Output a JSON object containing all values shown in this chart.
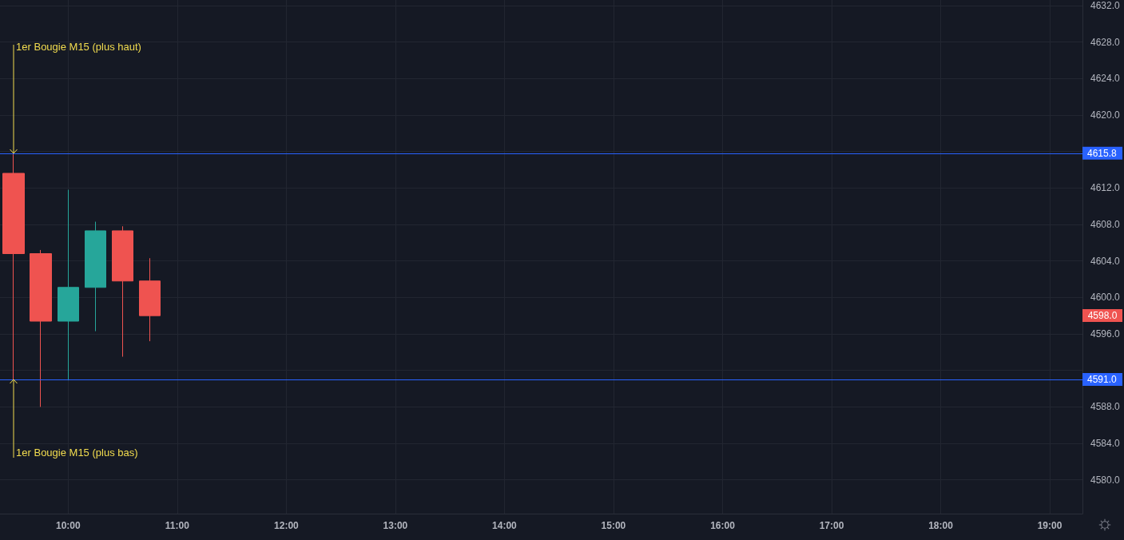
{
  "chart_data": {
    "type": "candlestick",
    "x": [
      9.5,
      9.75,
      10,
      10.25,
      10.5,
      10.75
    ],
    "ohlc": [
      [
        4613.6,
        4615.8,
        4591.0,
        4604.8
      ],
      [
        4604.8,
        4605.2,
        4588.0,
        4597.4
      ],
      [
        4597.4,
        4611.8,
        4590.9,
        4601.1
      ],
      [
        4601.1,
        4608.3,
        4596.3,
        4607.3
      ],
      [
        4607.3,
        4607.8,
        4593.5,
        4601.8
      ],
      [
        4601.8,
        4604.3,
        4595.2,
        4598.0
      ]
    ],
    "colors": [
      "#ef5350",
      "#ef5350",
      "#26a69a",
      "#26a69a",
      "#ef5350",
      "#ef5350"
    ],
    "xlim": [
      9.375,
      19.3
    ],
    "xticks": [
      {
        "value": 10,
        "label": "10:00"
      },
      {
        "value": 11,
        "label": "11:00"
      },
      {
        "value": 12,
        "label": "12:00"
      },
      {
        "value": 13,
        "label": "13:00"
      },
      {
        "value": 14,
        "label": "14:00"
      },
      {
        "value": 15,
        "label": "15:00"
      },
      {
        "value": 16,
        "label": "16:00"
      },
      {
        "value": 17,
        "label": "17:00"
      },
      {
        "value": 18,
        "label": "18:00"
      },
      {
        "value": 19,
        "label": "19:00"
      }
    ],
    "ylim": [
      4576.3,
      4632.6
    ],
    "yticks": [
      {
        "value": 4580,
        "label": "4580.0"
      },
      {
        "value": 4584,
        "label": "4584.0"
      },
      {
        "value": 4588,
        "label": "4588.0"
      },
      {
        "value": 4592,
        "label": null
      },
      {
        "value": 4596,
        "label": "4596.0"
      },
      {
        "value": 4600,
        "label": "4600.0"
      },
      {
        "value": 4604,
        "label": "4604.0"
      },
      {
        "value": 4608,
        "label": "4608.0"
      },
      {
        "value": 4612,
        "label": "4612.0"
      },
      {
        "value": 4616,
        "label": null
      },
      {
        "value": 4620,
        "label": "4620.0"
      },
      {
        "value": 4624,
        "label": "4624.0"
      },
      {
        "value": 4628,
        "label": "4628.0"
      },
      {
        "value": 4632,
        "label": "4632.0"
      }
    ],
    "grid": true,
    "ref_lines": [
      {
        "axis": "y",
        "value": 4615.8,
        "label": "4615.8",
        "color": "#2962ff"
      },
      {
        "axis": "y",
        "value": 4591.0,
        "label": "4591.0",
        "color": "#2962ff"
      }
    ],
    "annotations": [
      {
        "text": "1er Bougie M15 (plus haut)",
        "x": 9.5,
        "y": 4615.8
      },
      {
        "text": "1er Bougie M15 (plus bas)",
        "x": 9.5,
        "y": 4591.0
      },
      "4598.0"
    ]
  }
}
